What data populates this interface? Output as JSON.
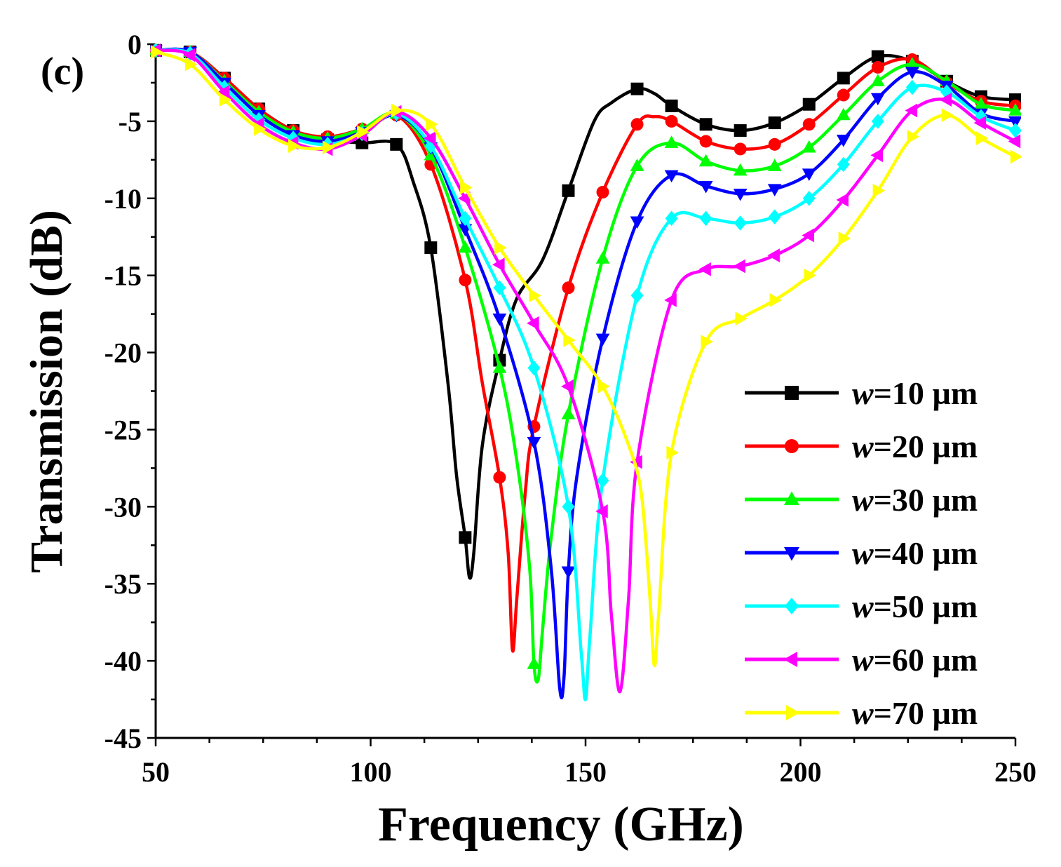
{
  "chart_data": {
    "type": "line",
    "panel_label": "(c)",
    "xlabel": "Frequency (GHz)",
    "ylabel": "Transmission (dB)",
    "xlim": [
      50,
      250
    ],
    "ylim": [
      -45,
      0
    ],
    "xticks": [
      50,
      100,
      150,
      200,
      250
    ],
    "yticks": [
      0,
      -5,
      -10,
      -15,
      -20,
      -25,
      -30,
      -35,
      -40,
      -45
    ],
    "legend_position": "bottom-right",
    "series": [
      {
        "name": "w=10 µm",
        "prefix": "w",
        "suffix": "=10 µm",
        "color": "#000000",
        "marker": "square",
        "x": [
          50,
          58,
          66,
          74,
          82,
          90,
          98,
          106,
          110,
          114,
          118,
          120,
          122,
          123,
          124,
          126,
          130,
          134,
          140,
          146,
          152,
          156,
          162,
          166,
          170,
          178,
          186,
          194,
          202,
          210,
          218,
          226,
          234,
          242,
          250
        ],
        "y": [
          -0.4,
          -0.5,
          -2.2,
          -4.2,
          -5.6,
          -6.2,
          -6.4,
          -6.5,
          -9.0,
          -13.2,
          -22.0,
          -28.0,
          -32.0,
          -34.6,
          -33.0,
          -26.0,
          -20.5,
          -16.5,
          -14.0,
          -9.5,
          -5.0,
          -3.8,
          -2.9,
          -3.2,
          -4.0,
          -5.2,
          -5.6,
          -5.1,
          -3.9,
          -2.2,
          -0.8,
          -1.1,
          -2.4,
          -3.4,
          -3.6
        ]
      },
      {
        "name": "w=20 µm",
        "prefix": "w",
        "suffix": "=20 µm",
        "color": "#ff0000",
        "marker": "circle",
        "x": [
          50,
          58,
          66,
          74,
          82,
          90,
          98,
          106,
          114,
          122,
          126,
          130,
          132,
          133,
          134,
          136,
          138,
          146,
          154,
          162,
          166,
          170,
          178,
          186,
          194,
          202,
          210,
          218,
          226,
          234,
          242,
          250
        ],
        "y": [
          -0.4,
          -0.5,
          -2.2,
          -4.2,
          -5.6,
          -6.0,
          -5.5,
          -4.6,
          -7.8,
          -15.3,
          -22.0,
          -28.1,
          -33.0,
          -39.3,
          -36.0,
          -29.0,
          -24.8,
          -15.8,
          -9.6,
          -5.2,
          -4.7,
          -5.0,
          -6.3,
          -6.8,
          -6.5,
          -5.2,
          -3.3,
          -1.5,
          -1.0,
          -2.5,
          -3.7,
          -4.0
        ]
      },
      {
        "name": "w=30 µm",
        "prefix": "w",
        "suffix": "=30 µm",
        "color": "#00ff00",
        "marker": "triangle-up",
        "x": [
          50,
          58,
          66,
          74,
          82,
          90,
          98,
          106,
          114,
          122,
          130,
          134,
          137,
          138,
          139,
          140,
          142,
          146,
          154,
          162,
          170,
          178,
          186,
          194,
          202,
          210,
          218,
          226,
          234,
          242,
          250
        ],
        "y": [
          -0.4,
          -0.5,
          -2.4,
          -4.4,
          -5.7,
          -6.1,
          -5.5,
          -4.5,
          -7.2,
          -13.2,
          -21.0,
          -27.0,
          -34.0,
          -40.2,
          -41.2,
          -38.0,
          -32.0,
          -24.0,
          -13.9,
          -7.9,
          -6.4,
          -7.6,
          -8.2,
          -7.9,
          -6.7,
          -4.6,
          -2.4,
          -1.3,
          -2.4,
          -3.9,
          -4.3
        ]
      },
      {
        "name": "w=40 µm",
        "prefix": "w",
        "suffix": "=40 µm",
        "color": "#0000ff",
        "marker": "triangle-down",
        "x": [
          50,
          58,
          66,
          74,
          82,
          90,
          98,
          106,
          114,
          122,
          130,
          138,
          142,
          144,
          145,
          146,
          148,
          154,
          162,
          170,
          178,
          186,
          194,
          202,
          210,
          218,
          226,
          234,
          242,
          250
        ],
        "y": [
          -0.4,
          -0.5,
          -2.5,
          -4.6,
          -5.9,
          -6.3,
          -5.7,
          -4.6,
          -6.7,
          -12.0,
          -17.8,
          -25.8,
          -34.0,
          -41.8,
          -41.0,
          -34.2,
          -28.0,
          -19.1,
          -11.5,
          -8.5,
          -9.2,
          -9.7,
          -9.4,
          -8.4,
          -6.2,
          -3.5,
          -1.8,
          -2.7,
          -4.5,
          -5.0
        ]
      },
      {
        "name": "w=50 µm",
        "prefix": "w",
        "suffix": "=50 µm",
        "color": "#00ffff",
        "marker": "diamond",
        "x": [
          50,
          58,
          66,
          74,
          82,
          90,
          98,
          106,
          114,
          122,
          130,
          138,
          146,
          149,
          150,
          151,
          154,
          162,
          170,
          178,
          186,
          194,
          202,
          210,
          218,
          226,
          234,
          242,
          250
        ],
        "y": [
          -0.4,
          -0.6,
          -2.8,
          -4.9,
          -6.1,
          -6.5,
          -5.8,
          -4.5,
          -6.6,
          -11.3,
          -15.8,
          -21.0,
          -30.0,
          -39.5,
          -42.5,
          -38.5,
          -28.3,
          -16.3,
          -11.3,
          -11.3,
          -11.6,
          -11.2,
          -10.0,
          -7.8,
          -5.0,
          -2.8,
          -3.1,
          -4.7,
          -5.6
        ]
      },
      {
        "name": "w=60 µm",
        "prefix": "w",
        "suffix": "=60 µm",
        "color": "#ff00ff",
        "marker": "triangle-left",
        "x": [
          50,
          58,
          66,
          74,
          82,
          90,
          98,
          106,
          114,
          122,
          130,
          138,
          146,
          154,
          156,
          158,
          160,
          162,
          170,
          178,
          186,
          194,
          202,
          210,
          218,
          226,
          234,
          242,
          250
        ],
        "y": [
          -0.4,
          -0.7,
          -3.1,
          -5.2,
          -6.4,
          -6.8,
          -5.9,
          -4.4,
          -6.1,
          -10.0,
          -14.3,
          -18.1,
          -22.2,
          -30.3,
          -37.0,
          -42.0,
          -36.0,
          -27.1,
          -16.6,
          -14.6,
          -14.4,
          -13.7,
          -12.4,
          -10.1,
          -7.2,
          -4.3,
          -3.6,
          -5.1,
          -6.3
        ]
      },
      {
        "name": "w=70 µm",
        "prefix": "w",
        "suffix": "=70 µm",
        "color": "#ffff00",
        "marker": "triangle-right",
        "x": [
          50,
          58,
          66,
          74,
          82,
          90,
          98,
          106,
          114,
          122,
          130,
          138,
          146,
          154,
          160,
          163,
          165,
          166,
          167,
          170,
          178,
          186,
          194,
          202,
          210,
          218,
          226,
          234,
          242,
          250
        ],
        "y": [
          -0.5,
          -1.3,
          -3.6,
          -5.5,
          -6.6,
          -6.7,
          -5.7,
          -4.3,
          -5.2,
          -9.3,
          -13.2,
          -16.3,
          -19.2,
          -22.2,
          -26.0,
          -29.2,
          -36.0,
          -40.3,
          -37.0,
          -26.5,
          -19.3,
          -17.8,
          -16.6,
          -15.0,
          -12.6,
          -9.5,
          -6.0,
          -4.6,
          -6.1,
          -7.3
        ]
      }
    ]
  }
}
